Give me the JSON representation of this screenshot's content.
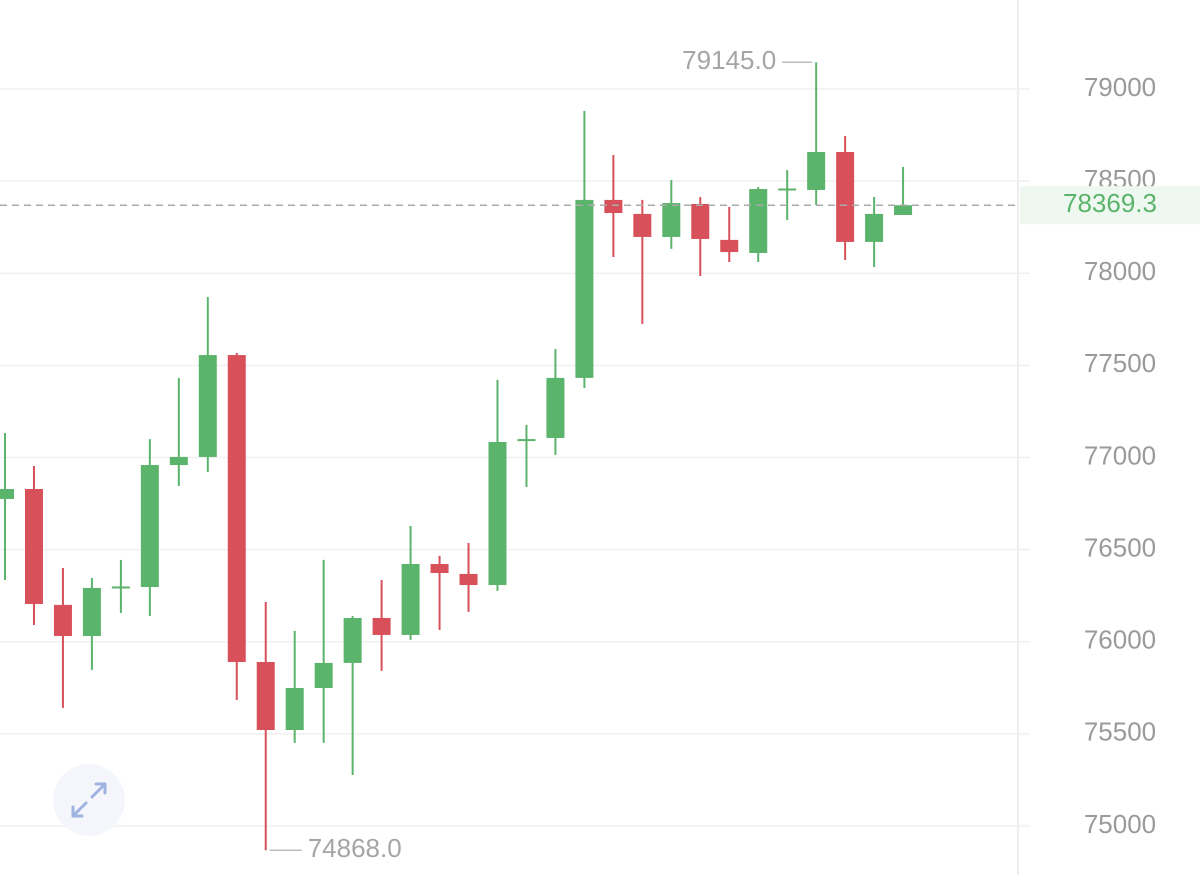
{
  "chart_data": {
    "type": "candlestick",
    "series": [
      {
        "open": [
          76775,
          76829,
          76200,
          76031,
          76290,
          76297,
          76959,
          77003,
          77556,
          75890,
          75521,
          75749,
          75885,
          76129,
          76037,
          76422,
          76368,
          76308,
          77090,
          77106,
          77432,
          78398,
          78322,
          78197,
          78376,
          78181,
          78110,
          78455,
          78452,
          78658,
          78170,
          78316
        ],
        "high": [
          77133,
          76954,
          76400,
          76346,
          76444,
          77100,
          77432,
          77871,
          77567,
          76216,
          76059,
          76444,
          76140,
          76335,
          76628,
          76466,
          76536,
          77421,
          77177,
          77589,
          78881,
          78642,
          78398,
          78506,
          78414,
          78360,
          78468,
          78560,
          79145,
          78745,
          78414,
          78577
        ],
        "low": [
          76335,
          76091,
          75641,
          75847,
          76156,
          76140,
          76845,
          76921,
          75684,
          74868,
          75451,
          75451,
          75277,
          75842,
          76010,
          76064,
          76162,
          76276,
          76840,
          77014,
          77377,
          78088,
          77725,
          78132,
          77985,
          78061,
          78061,
          78289,
          78370,
          78072,
          78034,
          78316
        ],
        "close": [
          76829,
          76205,
          76031,
          76292,
          76300,
          76959,
          77003,
          77556,
          75890,
          75521,
          75749,
          75885,
          76129,
          76037,
          76422,
          76373,
          76308,
          77084,
          77100,
          77432,
          78398,
          78327,
          78197,
          78381,
          78186,
          78115,
          78457,
          78460,
          78658,
          78170,
          78322,
          78369.3
        ]
      }
    ],
    "up_color": "#5bb46b",
    "down_color": "#d8505a",
    "ylim": [
      74734,
      79483
    ],
    "yticks": [
      75000,
      75500,
      76000,
      76500,
      77000,
      77500,
      78000,
      78500,
      79000
    ],
    "grid": true,
    "annotations": [
      {
        "value": 79145,
        "label": "79145.0"
      },
      {
        "value": 74868,
        "label": "74868.0"
      }
    ],
    "current_price": 78369.3
  }
}
